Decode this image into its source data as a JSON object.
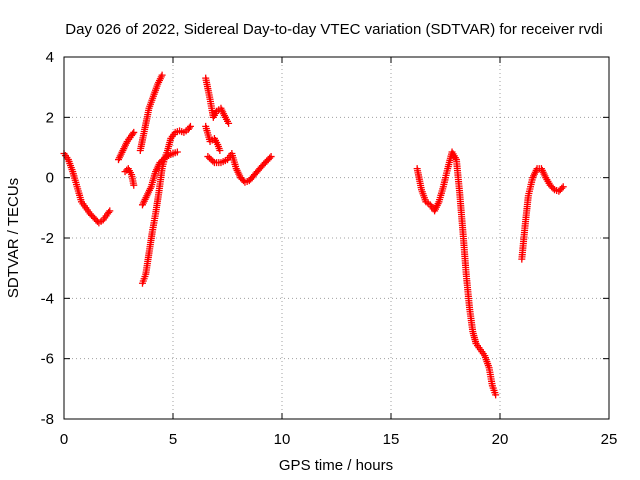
{
  "chart_data": {
    "type": "scatter",
    "title": "Day 026 of 2022, Sidereal Day-to-day VTEC variation (SDTVAR) for receiver rvdi",
    "xlabel": "GPS time / hours",
    "ylabel": "SDTVAR / TECUs",
    "xlim": [
      0,
      25
    ],
    "ylim": [
      -8,
      4
    ],
    "x_ticks": [
      0,
      5,
      10,
      15,
      20,
      25
    ],
    "y_ticks": [
      -8,
      -6,
      -4,
      -2,
      0,
      2,
      4
    ],
    "x_tick_labels": [
      "0",
      "5",
      "10",
      "15",
      "20",
      "25"
    ],
    "y_tick_labels": [
      "-8",
      "-6",
      "-4",
      "-2",
      "0",
      "2",
      "4"
    ],
    "grid": true,
    "marker": "plus",
    "color": "#ff0000",
    "segments": [
      [
        [
          0.0,
          0.8
        ],
        [
          0.2,
          0.6
        ],
        [
          0.4,
          0.2
        ],
        [
          0.6,
          -0.3
        ],
        [
          0.8,
          -0.8
        ],
        [
          1.0,
          -1.0
        ],
        [
          1.2,
          -1.2
        ],
        [
          1.4,
          -1.35
        ],
        [
          1.6,
          -1.5
        ],
        [
          1.8,
          -1.4
        ],
        [
          2.0,
          -1.2
        ],
        [
          2.1,
          -1.1
        ]
      ],
      [
        [
          2.5,
          0.6
        ],
        [
          2.7,
          0.9
        ],
        [
          2.9,
          1.2
        ],
        [
          3.1,
          1.4
        ],
        [
          3.2,
          1.5
        ]
      ],
      [
        [
          2.8,
          0.2
        ],
        [
          2.95,
          0.3
        ],
        [
          3.1,
          0.1
        ],
        [
          3.2,
          -0.25
        ]
      ],
      [
        [
          3.5,
          0.9
        ],
        [
          3.7,
          1.6
        ],
        [
          3.9,
          2.3
        ],
        [
          4.1,
          2.7
        ],
        [
          4.3,
          3.1
        ],
        [
          4.5,
          3.4
        ]
      ],
      [
        [
          3.6,
          -3.5
        ],
        [
          3.75,
          -3.2
        ],
        [
          3.9,
          -2.5
        ],
        [
          4.05,
          -1.8
        ],
        [
          4.2,
          -1.2
        ],
        [
          4.35,
          -0.5
        ],
        [
          4.5,
          0.3
        ],
        [
          4.6,
          0.6
        ],
        [
          4.75,
          0.9
        ],
        [
          4.9,
          1.3
        ],
        [
          5.1,
          1.5
        ],
        [
          5.3,
          1.55
        ],
        [
          5.5,
          1.5
        ],
        [
          5.7,
          1.6
        ],
        [
          5.8,
          1.7
        ]
      ],
      [
        [
          3.6,
          -0.9
        ],
        [
          3.8,
          -0.6
        ],
        [
          4.0,
          -0.3
        ],
        [
          4.2,
          0.2
        ],
        [
          4.4,
          0.5
        ],
        [
          4.7,
          0.7
        ],
        [
          5.0,
          0.8
        ],
        [
          5.2,
          0.85
        ]
      ],
      [
        [
          6.5,
          3.3
        ],
        [
          6.7,
          2.6
        ],
        [
          6.85,
          2.0
        ],
        [
          7.0,
          2.2
        ],
        [
          7.2,
          2.3
        ],
        [
          7.4,
          2.0
        ],
        [
          7.55,
          1.8
        ]
      ],
      [
        [
          6.5,
          1.7
        ],
        [
          6.7,
          1.2
        ],
        [
          6.9,
          1.3
        ],
        [
          7.05,
          1.1
        ],
        [
          7.15,
          0.9
        ]
      ],
      [
        [
          6.6,
          0.7
        ],
        [
          6.9,
          0.5
        ],
        [
          7.2,
          0.5
        ],
        [
          7.5,
          0.6
        ],
        [
          7.7,
          0.8
        ],
        [
          7.9,
          0.3
        ],
        [
          8.1,
          0.0
        ],
        [
          8.3,
          -0.15
        ],
        [
          8.5,
          -0.1
        ],
        [
          8.8,
          0.15
        ],
        [
          9.1,
          0.4
        ],
        [
          9.3,
          0.55
        ],
        [
          9.5,
          0.7
        ]
      ],
      [
        [
          16.2,
          0.3
        ],
        [
          16.4,
          -0.4
        ],
        [
          16.6,
          -0.8
        ],
        [
          16.8,
          -0.9
        ],
        [
          17.0,
          -1.1
        ],
        [
          17.2,
          -0.8
        ],
        [
          17.4,
          -0.3
        ],
        [
          17.6,
          0.3
        ],
        [
          17.8,
          0.85
        ],
        [
          18.0,
          0.6
        ],
        [
          18.15,
          -0.5
        ],
        [
          18.3,
          -1.8
        ],
        [
          18.45,
          -3.2
        ],
        [
          18.6,
          -4.3
        ],
        [
          18.75,
          -5.1
        ],
        [
          18.9,
          -5.5
        ],
        [
          19.1,
          -5.7
        ],
        [
          19.3,
          -5.9
        ],
        [
          19.5,
          -6.3
        ],
        [
          19.65,
          -6.9
        ],
        [
          19.8,
          -7.2
        ]
      ],
      [
        [
          21.0,
          -2.7
        ],
        [
          21.15,
          -1.6
        ],
        [
          21.3,
          -0.6
        ],
        [
          21.5,
          0.0
        ],
        [
          21.7,
          0.3
        ],
        [
          21.9,
          0.3
        ],
        [
          22.1,
          0.0
        ],
        [
          22.3,
          -0.25
        ],
        [
          22.5,
          -0.4
        ],
        [
          22.7,
          -0.45
        ],
        [
          22.9,
          -0.3
        ]
      ]
    ]
  }
}
